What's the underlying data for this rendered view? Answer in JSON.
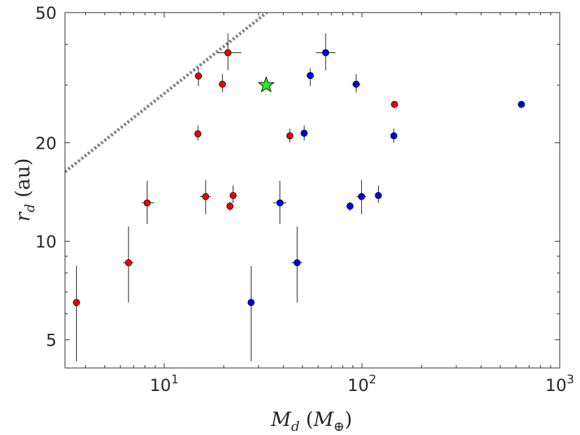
{
  "chart_data": {
    "type": "scatter",
    "title": "",
    "xlabel": "M_d (M_⊕)",
    "ylabel": "r_d (au)",
    "x_scale": "log",
    "y_scale": "log",
    "xlim": [
      3.15,
      1000
    ],
    "ylim": [
      4.1,
      50
    ],
    "x_ticks": [
      {
        "value": 10,
        "label": "10",
        "exp": "1"
      },
      {
        "value": 100,
        "label": "10",
        "exp": "2"
      },
      {
        "value": 1000,
        "label": "10",
        "exp": "3"
      }
    ],
    "y_ticks": [
      {
        "value": 5,
        "label": "5"
      },
      {
        "value": 10,
        "label": "10"
      },
      {
        "value": 20,
        "label": "20"
      },
      {
        "value": 50,
        "label": "50"
      }
    ],
    "colors": {
      "red": "#ee0000",
      "blue": "#0000ee",
      "star": "#22ee22",
      "reference_line": "#808080",
      "errorbar": "#000000"
    },
    "series": [
      {
        "name": "red",
        "color": "#ee0000",
        "points": [
          {
            "x": 3.6,
            "y": 6.5,
            "y_err": [
              4.3,
              8.4
            ],
            "x_err": [
              3.45,
              3.75
            ]
          },
          {
            "x": 6.6,
            "y": 8.6,
            "y_err": [
              6.5,
              11.1
            ],
            "x_err": [
              6.2,
              7.0
            ]
          },
          {
            "x": 8.2,
            "y": 13.1,
            "y_err": [
              11.3,
              15.3
            ],
            "x_err": [
              7.7,
              8.9
            ]
          },
          {
            "x": 14.8,
            "y": 21.3,
            "y_err": [
              20.3,
              22.6
            ],
            "x_err": [
              14.4,
              15.2
            ]
          },
          {
            "x": 14.9,
            "y": 32.0,
            "y_err": [
              29.8,
              33.8
            ],
            "x_err": [
              14.4,
              15.4
            ]
          },
          {
            "x": 16.2,
            "y": 13.7,
            "y_err": [
              12.1,
              15.4
            ],
            "x_err": [
              15.2,
              17.2
            ]
          },
          {
            "x": 19.7,
            "y": 30.2,
            "y_err": [
              28.5,
              32.4
            ],
            "x_err": [
              18.9,
              20.5
            ]
          },
          {
            "x": 21.0,
            "y": 37.7,
            "y_err": [
              33.3,
              43.2
            ],
            "x_err": [
              18.7,
              24.5
            ]
          },
          {
            "x": 21.5,
            "y": 12.8,
            "y_err": [
              12.4,
              13.2
            ],
            "x_err": [
              21.1,
              21.9
            ]
          },
          {
            "x": 22.3,
            "y": 13.8,
            "y_err": [
              13.1,
              14.8
            ],
            "x_err": [
              21.9,
              22.7
            ]
          },
          {
            "x": 43.2,
            "y": 21.0,
            "y_err": [
              20.0,
              22.1
            ],
            "x_err": [
              41.8,
              44.6
            ]
          },
          {
            "x": 146.0,
            "y": 26.2,
            "y_err": [
              25.8,
              26.6
            ],
            "x_err": [
              144.0,
              148.0
            ]
          }
        ]
      },
      {
        "name": "blue",
        "color": "#0000ee",
        "points": [
          {
            "x": 27.5,
            "y": 6.5,
            "y_err": [
              4.3,
              8.4
            ],
            "x_err": [
              26.5,
              28.5
            ]
          },
          {
            "x": 38.5,
            "y": 13.1,
            "y_err": [
              11.3,
              15.3
            ],
            "x_err": [
              35.5,
              41.5
            ]
          },
          {
            "x": 47.0,
            "y": 8.6,
            "y_err": [
              6.5,
              11.1
            ],
            "x_err": [
              44.0,
              50.0
            ]
          },
          {
            "x": 51.0,
            "y": 21.4,
            "y_err": [
              20.3,
              22.6
            ],
            "x_err": [
              49.5,
              52.5
            ]
          },
          {
            "x": 54.8,
            "y": 32.1,
            "y_err": [
              29.8,
              33.8
            ],
            "x_err": [
              52.5,
              57.1
            ]
          },
          {
            "x": 65.5,
            "y": 37.7,
            "y_err": [
              33.3,
              43.2
            ],
            "x_err": [
              58.5,
              73.5
            ]
          },
          {
            "x": 87.0,
            "y": 12.8,
            "y_err": [
              12.4,
              13.2
            ],
            "x_err": [
              85.5,
              88.5
            ]
          },
          {
            "x": 93.5,
            "y": 30.2,
            "y_err": [
              28.5,
              32.4
            ],
            "x_err": [
              89.0,
              98.0
            ]
          },
          {
            "x": 99.5,
            "y": 13.7,
            "y_err": [
              12.1,
              15.4
            ],
            "x_err": [
              94.0,
              105.0
            ]
          },
          {
            "x": 121.0,
            "y": 13.8,
            "y_err": [
              13.1,
              14.8
            ],
            "x_err": [
              119.0,
              123.0
            ]
          },
          {
            "x": 145.0,
            "y": 21.0,
            "y_err": [
              20.0,
              22.1
            ],
            "x_err": [
              142.0,
              148.0
            ]
          },
          {
            "x": 640.0,
            "y": 26.2,
            "y_err": [
              25.8,
              26.6
            ],
            "x_err": [
              630.0,
              650.0
            ]
          }
        ]
      }
    ],
    "star": {
      "x": 32.8,
      "y": 30.0,
      "color": "#22ee22"
    },
    "reference_line": {
      "style": "dotted",
      "color": "#808080",
      "points": [
        [
          3.15,
          16.3
        ],
        [
          33.0,
          50.0
        ]
      ]
    }
  }
}
